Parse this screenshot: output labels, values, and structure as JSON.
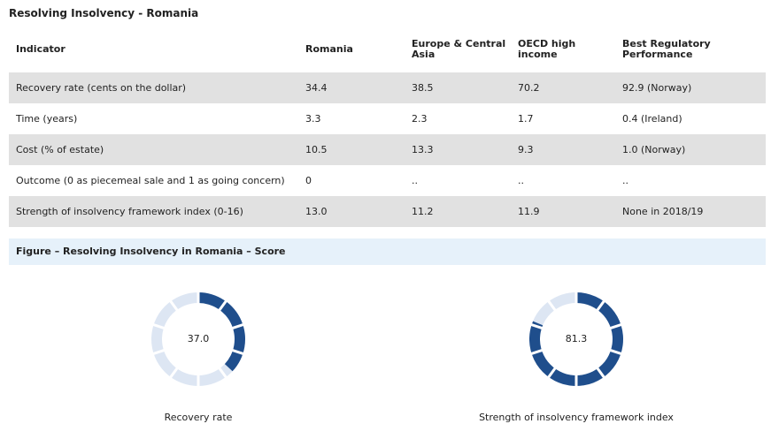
{
  "title": "Resolving Insolvency - Romania",
  "table": {
    "columns": [
      "Indicator",
      "Romania",
      "Europe & Central Asia",
      "OECD high income",
      "Best Regulatory Performance"
    ],
    "rows": [
      [
        "Recovery rate (cents on the dollar)",
        "34.4",
        "38.5",
        "70.2",
        "92.9 (Norway)"
      ],
      [
        "Time (years)",
        "3.3",
        "2.3",
        "1.7",
        "0.4 (Ireland)"
      ],
      [
        "Cost (% of estate)",
        "10.5",
        "13.3",
        "9.3",
        "1.0 (Norway)"
      ],
      [
        "Outcome (0 as piecemeal sale and 1 as going concern)",
        "0",
        "..",
        "..",
        ".."
      ],
      [
        "Strength of insolvency framework index (0-16)",
        "13.0",
        "11.2",
        "11.9",
        "None in 2018/19"
      ]
    ]
  },
  "figure_title": "Figure – Resolving Insolvency in Romania – Score",
  "chart_data": [
    {
      "type": "donut",
      "title": "Recovery rate",
      "values": [
        37.0
      ],
      "value_labels": [
        "37.0"
      ],
      "ylim": [
        0,
        100
      ],
      "color": "#1f4e8c"
    },
    {
      "type": "donut",
      "title": "Strength of insolvency framework index",
      "values": [
        81.3
      ],
      "value_labels": [
        "81.3"
      ],
      "ylim": [
        0,
        100
      ],
      "color": "#1f4e8c"
    }
  ]
}
